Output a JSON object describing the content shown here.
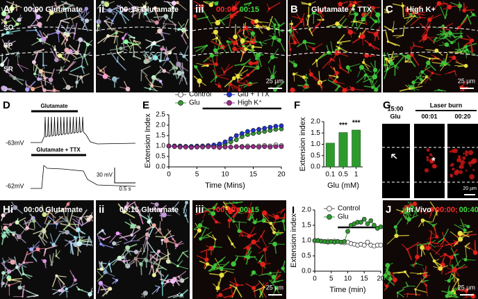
{
  "panels": [
    {
      "label": "Ai",
      "caption": "00:00 Glutamate",
      "layers": [
        "SO",
        "SP",
        "SR"
      ]
    },
    {
      "label": "ii",
      "caption": "00:15 Glutamate"
    },
    {
      "label": "iii",
      "caption_red": "00:00;",
      "caption_green": "00:15",
      "scale": "25 µm"
    },
    {
      "label": "B",
      "caption": "Glutamate + TTX"
    },
    {
      "label": "C",
      "caption": "High K+",
      "scale": "25 µm"
    },
    {
      "label": "Hi",
      "caption": "00:00 Glutamate"
    },
    {
      "label": "ii",
      "caption": "00:15 Glutamate"
    },
    {
      "label": "iii",
      "caption_red": "00:00;",
      "caption_green": "00:15",
      "scale": "25 µm"
    },
    {
      "label": "J",
      "caption": "In Vivo",
      "caption_red": "00:00;",
      "caption_green": "00:40",
      "scale": "25 µm"
    }
  ],
  "laser": {
    "label": "G",
    "time": "15:00",
    "condition": "Glu",
    "header": "Laser burn",
    "t1": "00:01",
    "t2": "00:20",
    "marker": "*",
    "scale": "20 µm"
  },
  "trace": {
    "label": "D",
    "top_stim": "Glutamate",
    "top_rest": "-63mV",
    "bottom_stim": "Glutamate + TTX",
    "bottom_rest": "-62mV",
    "scale_v": "30 mV",
    "scale_t": "0.5 s"
  },
  "chart_data": [
    {
      "type": "line",
      "panel_label": "E",
      "xlabel": "Time (Mins)",
      "ylabel": "Extension Index",
      "x": [
        0,
        1,
        2,
        3,
        4,
        5,
        6,
        7,
        8,
        9,
        10,
        11,
        12,
        13,
        14,
        15,
        16,
        17,
        18,
        19,
        20
      ],
      "series": [
        {
          "name": "Control",
          "color": "#ffffff",
          "values": [
            1,
            1,
            0.98,
            0.97,
            0.98,
            0.97,
            0.98,
            0.97,
            1,
            0.98,
            0.97,
            0.95,
            0.97,
            0.98,
            1,
            0.98,
            1,
            1.02,
            1,
            1.05,
            1.02
          ]
        },
        {
          "name": "Glu",
          "color": "#2e9a2e",
          "values": [
            1,
            1,
            0.98,
            0.98,
            0.97,
            0.98,
            1,
            1,
            1.02,
            1.05,
            1.1,
            1.2,
            1.3,
            1.45,
            1.55,
            1.6,
            1.65,
            1.7,
            1.75,
            1.8,
            1.82
          ]
        },
        {
          "name": "Glu + TTX",
          "color": "#2233cc",
          "values": [
            1,
            1,
            1,
            0.98,
            0.98,
            1,
            1,
            1.02,
            1.05,
            1.1,
            1.2,
            1.35,
            1.5,
            1.6,
            1.7,
            1.75,
            1.8,
            1.85,
            1.9,
            1.95,
            1.97
          ]
        },
        {
          "name": "High K⁺",
          "color": "#9a2a8a",
          "values": [
            1,
            0.97,
            0.95,
            0.95,
            0.93,
            0.95,
            0.95,
            0.97,
            0.95,
            0.93,
            0.95,
            0.95,
            0.97,
            0.95,
            0.95,
            0.97,
            0.95,
            0.97,
            0.95,
            0.97,
            0.97
          ]
        }
      ],
      "stim_bar": [
        6,
        20
      ],
      "xlim": [
        0,
        20
      ],
      "xticks": [
        0,
        5,
        10,
        15,
        20
      ],
      "ylim": [
        0,
        2.5
      ],
      "yticks": [
        {
          "value": 0,
          "label": "0.0"
        },
        0.5,
        {
          "value": 1,
          "label": "1.0"
        },
        1.5,
        {
          "value": 2,
          "label": "2.0"
        },
        2.5
      ]
    },
    {
      "type": "bar",
      "panel_label": "F",
      "xlabel": "Glu (mM)",
      "ylabel": "Extension index",
      "categories": [
        "0.1",
        "0.5",
        "1"
      ],
      "values": [
        1.05,
        1.52,
        1.63
      ],
      "color": "#2e9a2e",
      "significance": [
        null,
        "***",
        "***"
      ],
      "ylim": [
        0,
        2
      ],
      "yticks": [
        {
          "value": 0,
          "label": "0.0"
        },
        0.5,
        {
          "value": 1,
          "label": "1.0"
        },
        1.5,
        {
          "value": 2,
          "label": "2.0"
        }
      ]
    },
    {
      "type": "line",
      "panel_label": "I",
      "xlabel": "Time (min)",
      "ylabel": "Extension index",
      "x": [
        0,
        1,
        2,
        3,
        4,
        5,
        6,
        7,
        8,
        9,
        10,
        11,
        12,
        13,
        14,
        15,
        16,
        17,
        18,
        19,
        20
      ],
      "series": [
        {
          "name": "Control",
          "color": "#ffffff",
          "values": [
            1,
            1,
            0.98,
            0.97,
            0.98,
            0.97,
            0.98,
            0.97,
            0.95,
            0.93,
            0.95,
            0.9,
            0.88,
            0.85,
            0.88,
            0.85,
            0.95,
            0.85,
            0.82,
            0.85,
            0.85
          ]
        },
        {
          "name": "Glu",
          "color": "#2e9a2e",
          "values": [
            1,
            1,
            0.98,
            0.97,
            0.95,
            0.97,
            0.95,
            0.97,
            0.95,
            0.97,
            1.3,
            1.5,
            1.55,
            1.6,
            1.6,
            1.7,
            1.55,
            1.65,
            1.5,
            1.4,
            1.45
          ]
        }
      ],
      "stim_bar": [
        7,
        20
      ],
      "xlim": [
        0,
        20
      ],
      "xticks": [
        0,
        5,
        10,
        15,
        20
      ],
      "ylim": [
        0,
        2
      ],
      "yticks": [
        {
          "value": 0,
          "label": "0.0"
        },
        0.5,
        {
          "value": 1,
          "label": "1.0"
        },
        1.5,
        {
          "value": 2,
          "label": "2.0"
        }
      ]
    }
  ]
}
